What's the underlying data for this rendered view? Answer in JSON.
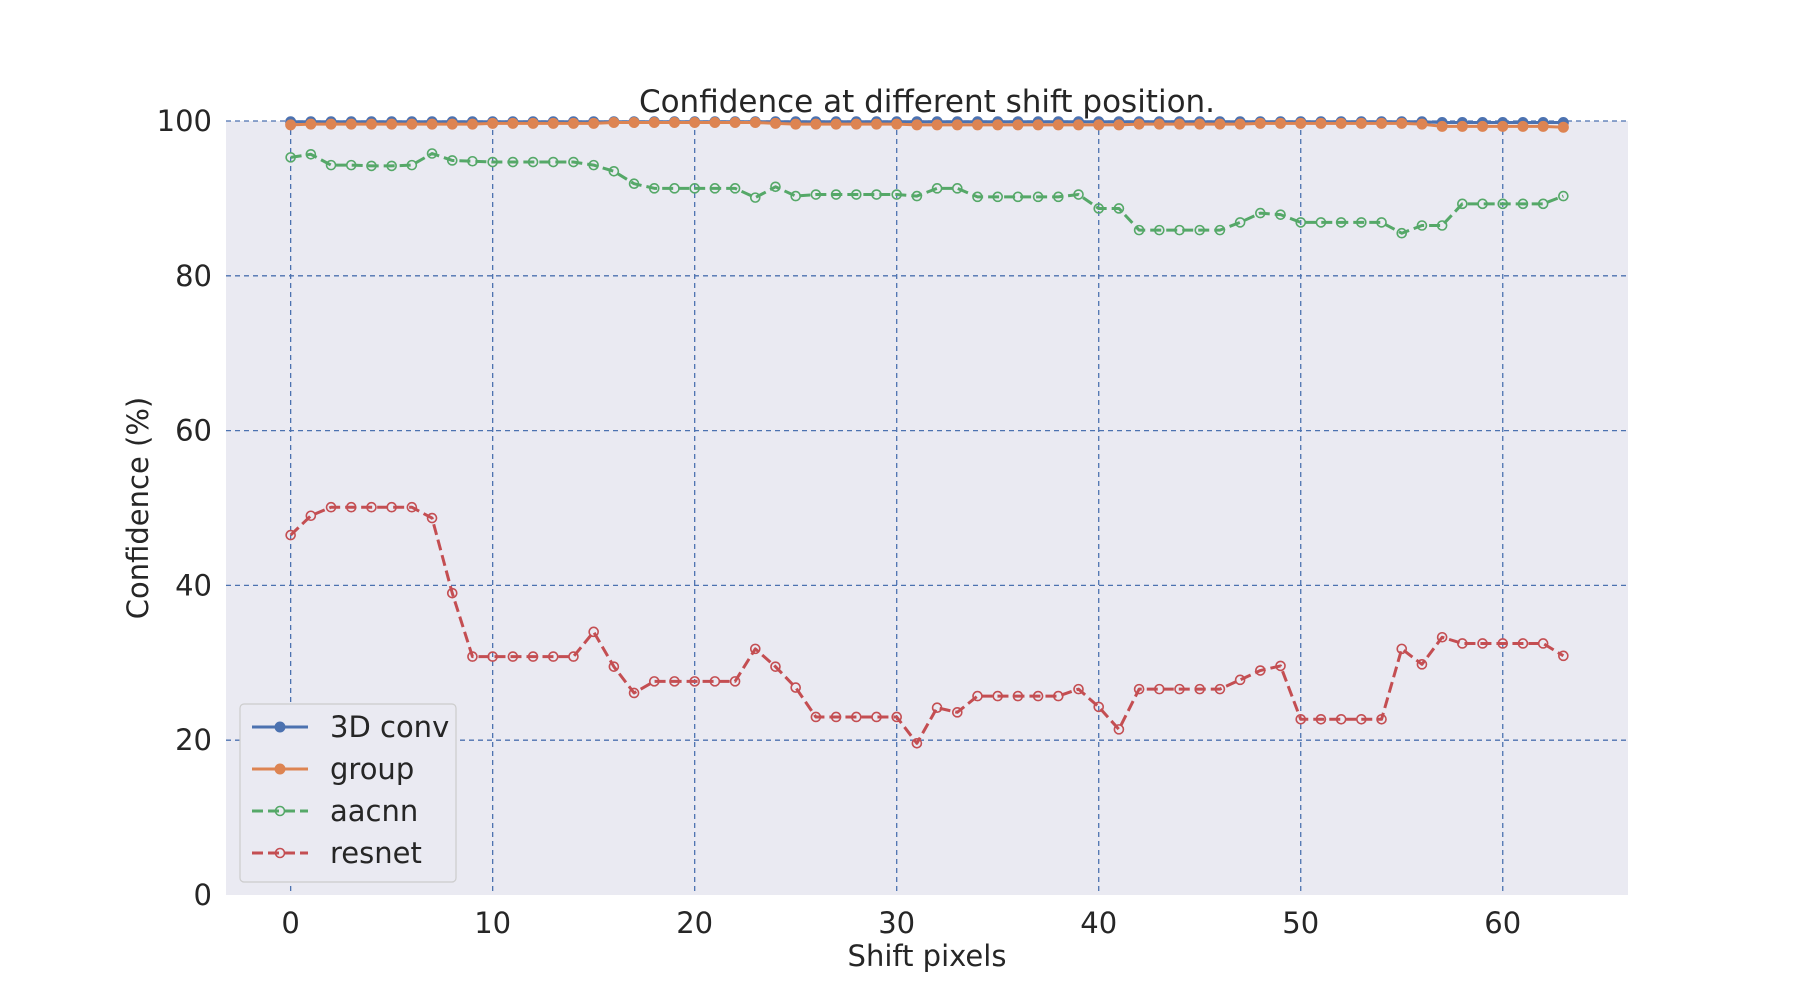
{
  "chart_data": {
    "type": "line",
    "title": "Confidence at different shift position.",
    "xlabel": "Shift pixels",
    "ylabel": "Confidence (%)",
    "xlim": [
      -3.2,
      66.2
    ],
    "ylim": [
      0,
      100
    ],
    "x_ticks": [
      0,
      10,
      20,
      30,
      40,
      50,
      60
    ],
    "y_ticks": [
      0,
      20,
      40,
      60,
      80,
      100
    ],
    "grid": true,
    "legend_position": "lower-left",
    "x": [
      0,
      1,
      2,
      3,
      4,
      5,
      6,
      7,
      8,
      9,
      10,
      11,
      12,
      13,
      14,
      15,
      16,
      17,
      18,
      19,
      20,
      21,
      22,
      23,
      24,
      25,
      26,
      27,
      28,
      29,
      30,
      31,
      32,
      33,
      34,
      35,
      36,
      37,
      38,
      39,
      40,
      41,
      42,
      43,
      44,
      45,
      46,
      47,
      48,
      49,
      50,
      51,
      52,
      53,
      54,
      55,
      56,
      57,
      58,
      59,
      60,
      61,
      62,
      63
    ],
    "series": [
      {
        "name": "3D conv",
        "color": "#4c72b0",
        "style": "solid",
        "marker": "filled",
        "values": [
          99.9,
          99.9,
          99.9,
          99.9,
          99.9,
          99.9,
          99.9,
          99.9,
          99.9,
          99.9,
          99.9,
          99.9,
          99.9,
          99.9,
          99.9,
          99.9,
          99.9,
          99.9,
          99.9,
          99.9,
          99.9,
          99.9,
          99.9,
          99.9,
          99.9,
          99.9,
          99.9,
          99.9,
          99.9,
          99.9,
          99.9,
          99.9,
          99.9,
          99.9,
          99.9,
          99.9,
          99.9,
          99.9,
          99.9,
          99.9,
          99.9,
          99.9,
          99.9,
          99.9,
          99.9,
          99.9,
          99.9,
          99.9,
          99.9,
          99.9,
          99.9,
          99.9,
          99.9,
          99.9,
          99.9,
          99.9,
          99.9,
          99.8,
          99.8,
          99.8,
          99.8,
          99.8,
          99.8,
          99.8
        ]
      },
      {
        "name": "group",
        "color": "#dd8452",
        "style": "solid",
        "marker": "filled",
        "values": [
          99.5,
          99.6,
          99.6,
          99.6,
          99.6,
          99.6,
          99.6,
          99.6,
          99.6,
          99.6,
          99.7,
          99.7,
          99.7,
          99.7,
          99.7,
          99.7,
          99.8,
          99.8,
          99.8,
          99.8,
          99.8,
          99.8,
          99.8,
          99.8,
          99.7,
          99.6,
          99.6,
          99.6,
          99.6,
          99.6,
          99.6,
          99.5,
          99.5,
          99.5,
          99.5,
          99.5,
          99.5,
          99.5,
          99.5,
          99.5,
          99.5,
          99.5,
          99.6,
          99.6,
          99.6,
          99.6,
          99.6,
          99.6,
          99.7,
          99.7,
          99.7,
          99.7,
          99.7,
          99.7,
          99.7,
          99.7,
          99.6,
          99.3,
          99.3,
          99.3,
          99.3,
          99.3,
          99.3,
          99.2
        ]
      },
      {
        "name": "aacnn",
        "color": "#55a868",
        "style": "dashed",
        "marker": "open",
        "values": [
          95.3,
          95.7,
          94.3,
          94.3,
          94.2,
          94.2,
          94.3,
          95.8,
          94.9,
          94.8,
          94.7,
          94.7,
          94.7,
          94.7,
          94.7,
          94.3,
          93.5,
          91.9,
          91.3,
          91.3,
          91.3,
          91.3,
          91.3,
          90.1,
          91.5,
          90.3,
          90.5,
          90.5,
          90.5,
          90.5,
          90.5,
          90.3,
          91.3,
          91.3,
          90.2,
          90.2,
          90.2,
          90.2,
          90.2,
          90.5,
          88.7,
          88.7,
          85.9,
          85.9,
          85.9,
          85.9,
          85.9,
          86.9,
          88.1,
          87.9,
          86.9,
          86.9,
          86.9,
          86.9,
          86.9,
          85.5,
          86.5,
          86.5,
          89.3,
          89.3,
          89.3,
          89.3,
          89.3,
          90.3
        ]
      },
      {
        "name": "resnet",
        "color": "#c44e52",
        "style": "dashed",
        "marker": "open",
        "values": [
          46.5,
          49.0,
          50.1,
          50.1,
          50.1,
          50.1,
          50.1,
          48.7,
          39.0,
          30.8,
          30.8,
          30.8,
          30.8,
          30.8,
          30.8,
          34.0,
          29.5,
          26.1,
          27.6,
          27.6,
          27.6,
          27.6,
          27.6,
          31.8,
          29.5,
          26.8,
          23.0,
          23.0,
          23.0,
          23.0,
          23.0,
          19.6,
          24.2,
          23.6,
          25.7,
          25.7,
          25.7,
          25.7,
          25.7,
          26.6,
          24.3,
          21.4,
          26.6,
          26.6,
          26.6,
          26.6,
          26.6,
          27.8,
          29.0,
          29.6,
          22.7,
          22.7,
          22.7,
          22.7,
          22.7,
          31.8,
          29.8,
          33.3,
          32.5,
          32.5,
          32.5,
          32.5,
          32.5,
          30.9
        ]
      }
    ]
  }
}
